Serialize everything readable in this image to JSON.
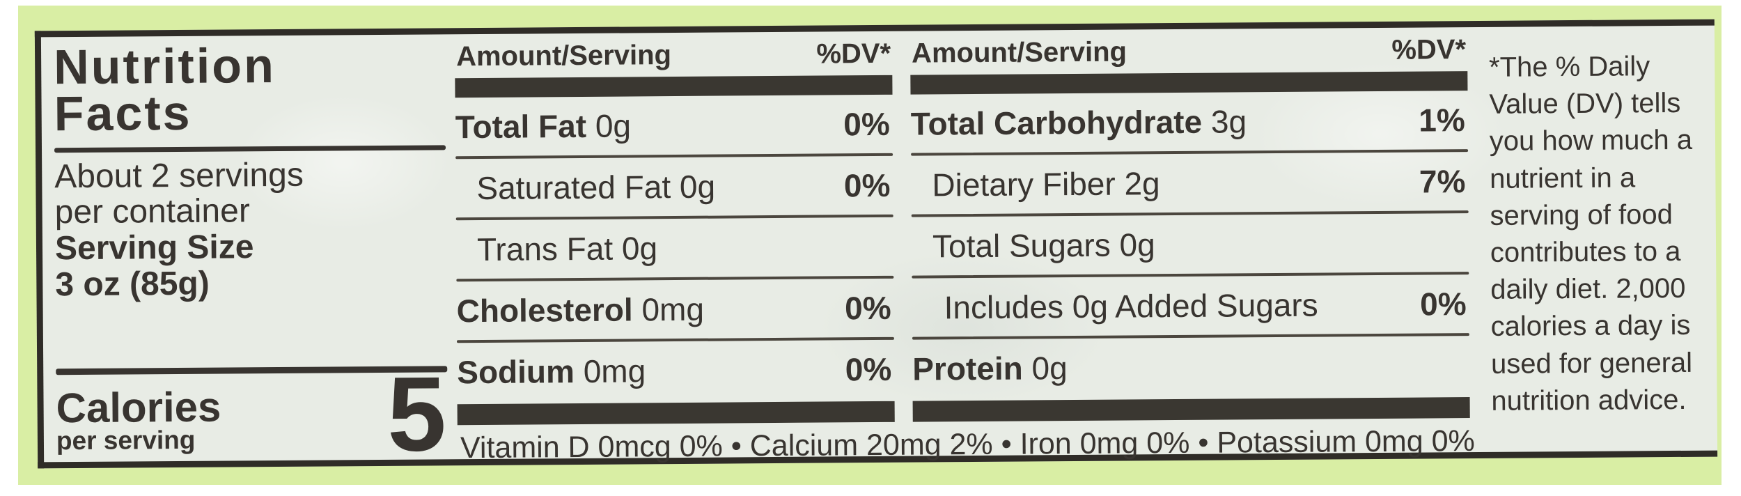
{
  "label": {
    "title_line1": "Nutrition",
    "title_line2": "Facts",
    "servings_line1": "About 2 servings",
    "servings_line2": "per container",
    "serving_size_label": "Serving Size",
    "serving_size_value": "3 oz (85g)",
    "calories_label": "Calories",
    "calories_sub": "per serving",
    "calories_value": "5",
    "columns": [
      {
        "header_amount": "Amount/Serving",
        "header_dv": "%DV*",
        "rows": [
          {
            "name": "Total Fat",
            "amount": "0g",
            "dv": "0%"
          },
          {
            "name": "Saturated Fat",
            "amount": "0g",
            "dv": "0%"
          },
          {
            "name": "Trans Fat",
            "amount": "0g",
            "dv": ""
          },
          {
            "name": "Cholesterol",
            "amount": "0mg",
            "dv": "0%"
          },
          {
            "name": "Sodium",
            "amount": "0mg",
            "dv": "0%"
          }
        ]
      },
      {
        "header_amount": "Amount/Serving",
        "header_dv": "%DV*",
        "rows": [
          {
            "name": "Total Carbohydrate",
            "amount": "3g",
            "dv": "1%"
          },
          {
            "name": "Dietary Fiber",
            "amount": "2g",
            "dv": "7%"
          },
          {
            "name": "Total Sugars",
            "amount": "0g",
            "dv": ""
          },
          {
            "name": "Includes 0g Added Sugars",
            "amount": "",
            "dv": "0%"
          },
          {
            "name": "Protein",
            "amount": "0g",
            "dv": ""
          }
        ]
      }
    ],
    "micronutrients": "Vitamin D 0mcg 0% • Calcium 20mg 2% • Iron 0mg 0% • Potassium 0mg 0%",
    "footnote": "*The % Daily Value (DV) tells you how much a nutrient in a serving of food contributes to a daily diet. 2,000 calories a day is used for general nutrition advice.",
    "colors": {
      "band_green": "#d9eea4",
      "label_background": "#e8ece5",
      "ink": "#383430"
    }
  }
}
